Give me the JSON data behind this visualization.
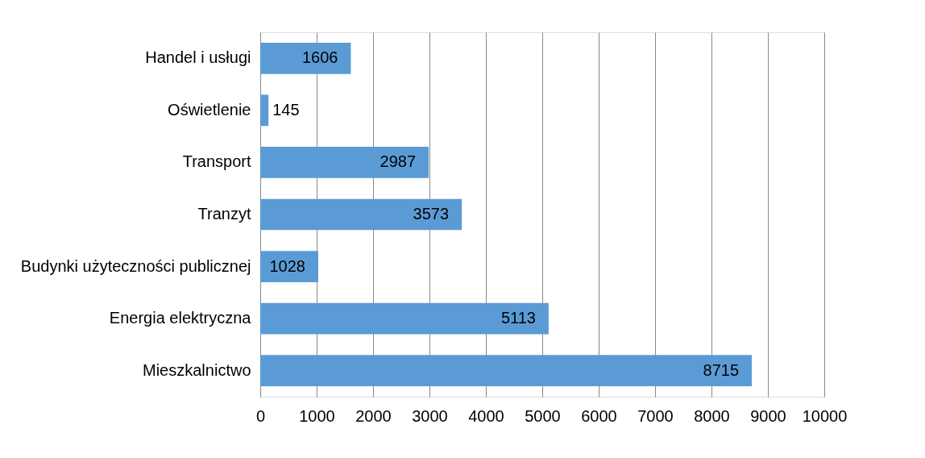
{
  "chart_data": {
    "type": "bar",
    "orientation": "horizontal",
    "categories": [
      "Handel i usługi",
      "Oświetlenie",
      "Transport",
      "Tranzyt",
      "Budynki użyteczności publicznej",
      "Energia elektryczna",
      "Mieszkalnictwo"
    ],
    "values": [
      1606,
      145,
      2987,
      3573,
      1028,
      5113,
      8715
    ],
    "color": "#5b9bd5",
    "xlim": [
      0,
      10000
    ],
    "xticks": [
      0,
      1000,
      2000,
      3000,
      4000,
      5000,
      6000,
      7000,
      8000,
      9000,
      10000
    ],
    "grid": "x",
    "data_labels": true
  }
}
